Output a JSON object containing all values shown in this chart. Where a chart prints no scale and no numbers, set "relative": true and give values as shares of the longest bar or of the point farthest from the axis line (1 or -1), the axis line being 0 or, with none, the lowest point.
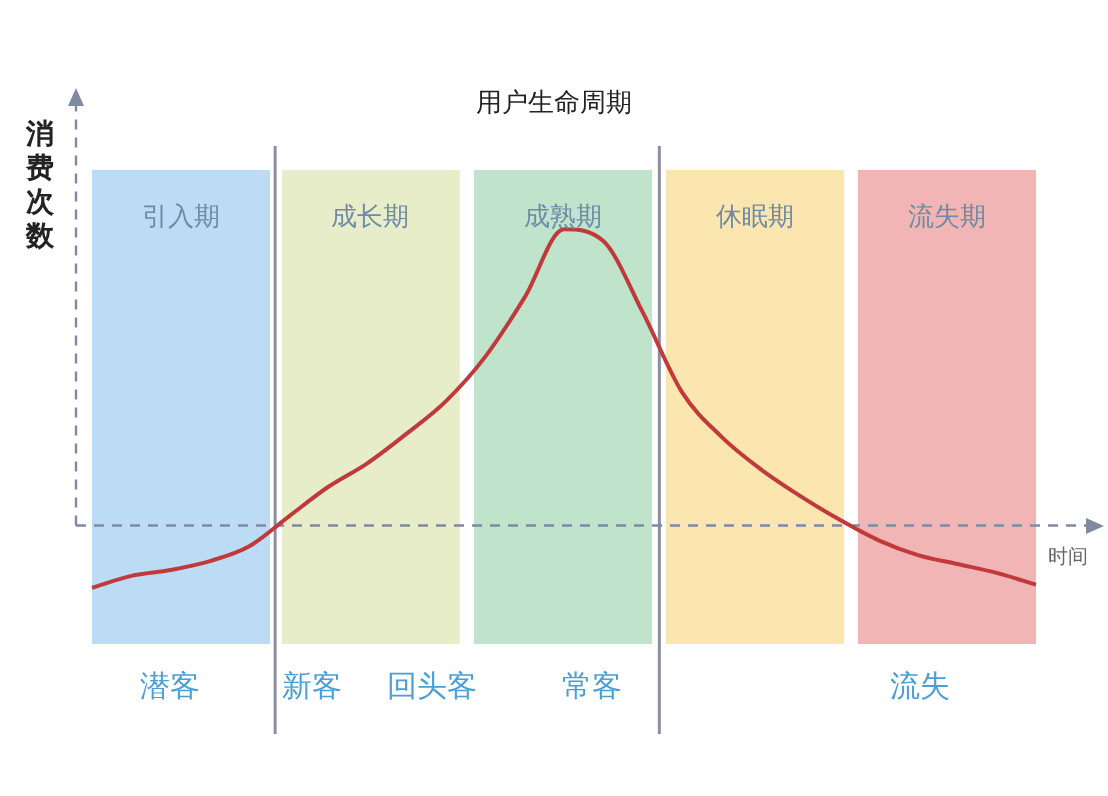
{
  "chart_data": {
    "type": "line",
    "title": "用户生命周期",
    "xlabel": "时间",
    "ylabel": "消费次数",
    "relative": true,
    "legend": false,
    "marker": "none",
    "categories": [
      null,
      null,
      null,
      null,
      null,
      null,
      null,
      null,
      null,
      null,
      null,
      null,
      null,
      null,
      null,
      null,
      null,
      null,
      null,
      null,
      null,
      null,
      null,
      null,
      null
    ],
    "series": [
      {
        "color": "#c0393b",
        "values": [
          -0.21,
          -0.17,
          -0.15,
          -0.12,
          -0.07,
          0.03,
          0.13,
          0.21,
          0.31,
          0.42,
          0.57,
          0.77,
          1.0,
          0.96,
          0.72,
          0.45,
          0.3,
          0.19,
          0.1,
          0.02,
          -0.05,
          -0.1,
          -0.13,
          -0.16,
          -0.2
        ]
      }
    ],
    "ref_lines": [
      {
        "axis": "y",
        "value": 0,
        "color": "#7f8aa0",
        "line_style": "dashed"
      }
    ],
    "annotations": [
      "引入期",
      "成长期",
      "成熟期",
      "休眠期",
      "流失期",
      "潜客",
      "新客",
      "回头客",
      "常客",
      "流失"
    ]
  }
}
